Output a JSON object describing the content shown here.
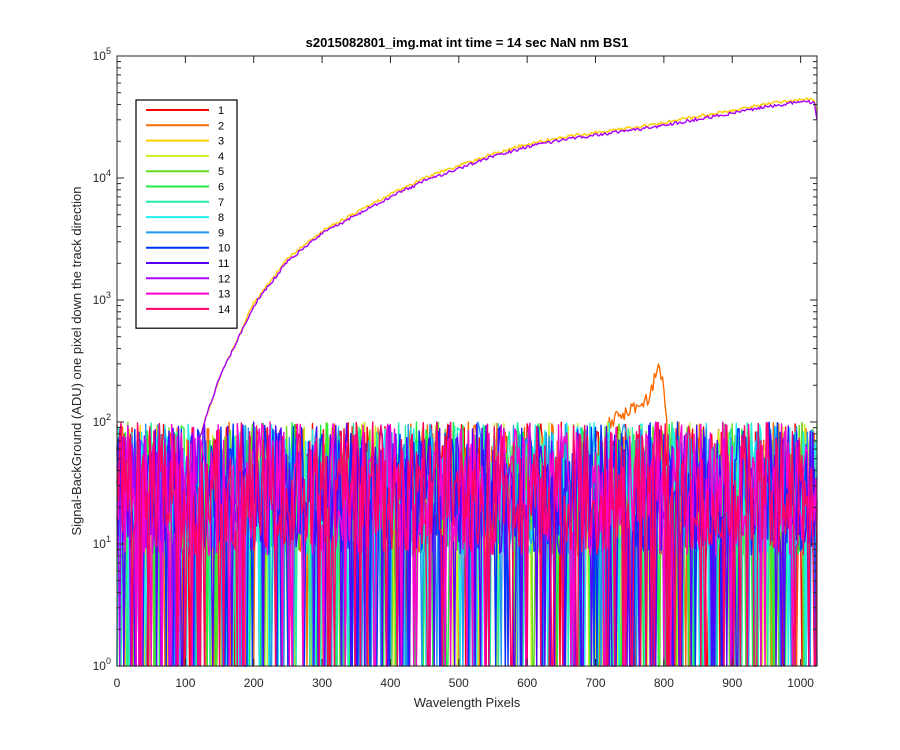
{
  "chart_data": {
    "type": "line",
    "title": "s2015082801_img.mat int time = 14 sec  NaN nm BS1",
    "xlabel": "Wavelength Pixels",
    "ylabel": "Signal-BackGround (ADU) one pixel down the track direction",
    "xlim": [
      0,
      1024
    ],
    "ylim": [
      1,
      100000
    ],
    "yscale": "log",
    "xticks": [
      "0",
      "100",
      "200",
      "300",
      "400",
      "500",
      "600",
      "700",
      "800",
      "900",
      "1000"
    ],
    "yticks": [
      {
        "base": "10",
        "exp": "0"
      },
      {
        "base": "10",
        "exp": "1"
      },
      {
        "base": "10",
        "exp": "2"
      },
      {
        "base": "10",
        "exp": "3"
      },
      {
        "base": "10",
        "exp": "4"
      },
      {
        "base": "10",
        "exp": "5"
      }
    ],
    "grid": false,
    "legend_position": "top-left",
    "series": [
      {
        "name": "1",
        "color": "#ff0000",
        "behavior": "noise"
      },
      {
        "name": "2",
        "color": "#ff6a00",
        "behavior": "noise",
        "peak": {
          "x": [
            720,
            780,
            790,
            800,
            805
          ],
          "y": [
            100,
            160,
            300,
            200,
            80
          ]
        }
      },
      {
        "name": "3",
        "color": "#ffcc00",
        "behavior": "signal"
      },
      {
        "name": "4",
        "color": "#ccee22",
        "behavior": "noise"
      },
      {
        "name": "5",
        "color": "#66dd22",
        "behavior": "noise"
      },
      {
        "name": "6",
        "color": "#22ee44",
        "behavior": "noise"
      },
      {
        "name": "7",
        "color": "#22eeaa",
        "behavior": "noise"
      },
      {
        "name": "8",
        "color": "#22eeee",
        "behavior": "noise"
      },
      {
        "name": "9",
        "color": "#2299ee",
        "behavior": "noise"
      },
      {
        "name": "10",
        "color": "#0033ff",
        "behavior": "noise"
      },
      {
        "name": "11",
        "color": "#5500ff",
        "behavior": "noise"
      },
      {
        "name": "12",
        "color": "#aa00ff",
        "behavior": "signal"
      },
      {
        "name": "13",
        "color": "#ff00cc",
        "behavior": "noise"
      },
      {
        "name": "14",
        "color": "#ff0066",
        "behavior": "noise"
      }
    ],
    "signal_curve": {
      "x": [
        120,
        130,
        150,
        200,
        250,
        300,
        350,
        400,
        450,
        500,
        550,
        600,
        650,
        700,
        750,
        800,
        850,
        900,
        950,
        1000,
        1020,
        1024
      ],
      "y": [
        70,
        110,
        230,
        900,
        2100,
        3500,
        5000,
        7000,
        9500,
        12000,
        15000,
        18000,
        20500,
        22500,
        24500,
        27000,
        30500,
        34000,
        38500,
        42000,
        42000,
        30000
      ]
    },
    "noise_range": [
      1,
      100
    ]
  }
}
